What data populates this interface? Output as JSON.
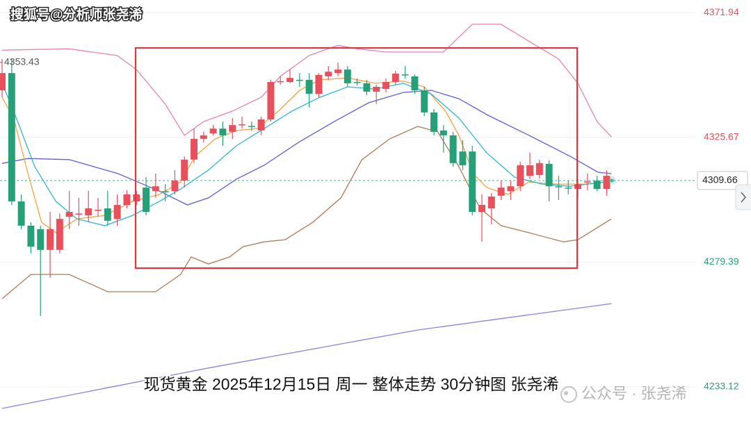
{
  "chart_data": {
    "type": "candlestick",
    "watermark_top": "搜狐号@分析师张尧浠",
    "caption": "现货黄金  2025年12月15日 周一 整体走势 30分钟图 张尧浠",
    "watermark": "公众号 · 张尧浠",
    "xlim": [
      -0.22,
      63.55
    ],
    "ylim": [
      4219.7,
      4376.6
    ],
    "yticks": [
      4233.12,
      4279.39,
      4325.67,
      4371.94
    ],
    "grid": true,
    "last_price": 4309.66,
    "max_label": 4353.43,
    "up_color": "#e8505b",
    "down_color": "#27a07a",
    "ohlc": [
      [
        4343.1,
        4354.7,
        4340.5,
        4349.5
      ],
      [
        4349.5,
        4354.7,
        4300.6,
        4301.9
      ],
      [
        4301.9,
        4304.5,
        4291.6,
        4292.9
      ],
      [
        4292.9,
        4294.2,
        4282.6,
        4285.1
      ],
      [
        4291.6,
        4292.9,
        4259.4,
        4283.9
      ],
      [
        4283.9,
        4298.0,
        4273.6,
        4291.6
      ],
      [
        4283.9,
        4297.4,
        4282.6,
        4295.4
      ],
      [
        4296.2,
        4305.8,
        4291.6,
        4298.0
      ],
      [
        4297.2,
        4303.2,
        4292.9,
        4297.4
      ],
      [
        4296.7,
        4305.8,
        4294.2,
        4299.3
      ],
      [
        4298.6,
        4303.2,
        4296.2,
        4298.8
      ],
      [
        4299.3,
        4305.8,
        4292.9,
        4294.7
      ],
      [
        4295.4,
        4304.5,
        4292.9,
        4300.6
      ],
      [
        4300.6,
        4306.0,
        4299.3,
        4304.5
      ],
      [
        4301.9,
        4305.8,
        4300.6,
        4304.5
      ],
      [
        4307.0,
        4310.9,
        4296.7,
        4298.0
      ],
      [
        4305.7,
        4312.2,
        4303.2,
        4307.5
      ],
      [
        4305.7,
        4308.3,
        4301.9,
        4305.5
      ],
      [
        4305.7,
        4313.5,
        4304.5,
        4309.6
      ],
      [
        4309.6,
        4318.6,
        4307.0,
        4317.4
      ],
      [
        4317.4,
        4328.9,
        4316.1,
        4325.1
      ],
      [
        4325.1,
        4327.7,
        4323.8,
        4326.4
      ],
      [
        4327.1,
        4330.2,
        4326.4,
        4328.9
      ],
      [
        4328.9,
        4331.5,
        4322.5,
        4326.4
      ],
      [
        4327.7,
        4332.8,
        4325.1,
        4330.2
      ],
      [
        4330.2,
        4333.4,
        4328.9,
        4330.5
      ],
      [
        4329.9,
        4331.5,
        4328.0,
        4329.7
      ],
      [
        4328.2,
        4333.4,
        4326.4,
        4332.3
      ],
      [
        4332.3,
        4347.0,
        4331.5,
        4346.2
      ],
      [
        4346.2,
        4348.3,
        4345.2,
        4346.5
      ],
      [
        4346.2,
        4350.8,
        4345.7,
        4347.7
      ],
      [
        4347.0,
        4349.5,
        4344.4,
        4346.9
      ],
      [
        4347.0,
        4349.5,
        4336.7,
        4341.8
      ],
      [
        4341.8,
        4349.5,
        4340.5,
        4348.8
      ],
      [
        4348.3,
        4352.1,
        4347.0,
        4350.0
      ],
      [
        4349.5,
        4353.4,
        4348.3,
        4350.8
      ],
      [
        4350.8,
        4352.1,
        4344.4,
        4345.7
      ],
      [
        4346.2,
        4347.5,
        4344.9,
        4346.0
      ],
      [
        4345.7,
        4347.0,
        4341.3,
        4342.6
      ],
      [
        4342.6,
        4345.2,
        4338.0,
        4344.4
      ],
      [
        4343.6,
        4347.5,
        4342.3,
        4346.2
      ],
      [
        4346.2,
        4350.3,
        4345.2,
        4349.3
      ],
      [
        4349.0,
        4352.1,
        4347.5,
        4348.8
      ],
      [
        4348.3,
        4349.0,
        4341.8,
        4343.1
      ],
      [
        4343.1,
        4344.4,
        4333.6,
        4334.9
      ],
      [
        4334.9,
        4336.2,
        4326.4,
        4327.7
      ],
      [
        4328.2,
        4330.2,
        4320.0,
        4326.4
      ],
      [
        4326.4,
        4327.7,
        4314.8,
        4316.1
      ],
      [
        4320.4,
        4324.6,
        4313.5,
        4315.3
      ],
      [
        4320.4,
        4322.5,
        4296.7,
        4298.0
      ],
      [
        4298.0,
        4304.5,
        4286.9,
        4300.6
      ],
      [
        4299.3,
        4305.0,
        4293.4,
        4303.7
      ],
      [
        4304.0,
        4309.6,
        4302.4,
        4307.0
      ],
      [
        4305.7,
        4309.6,
        4302.4,
        4307.5
      ],
      [
        4307.5,
        4316.6,
        4305.7,
        4315.3
      ],
      [
        4311.4,
        4320.0,
        4310.1,
        4315.3
      ],
      [
        4311.7,
        4317.4,
        4310.4,
        4316.1
      ],
      [
        4315.8,
        4317.1,
        4301.9,
        4307.5
      ],
      [
        4307.5,
        4311.4,
        4302.4,
        4307.2
      ],
      [
        4307.0,
        4309.6,
        4304.5,
        4306.8
      ],
      [
        4306.5,
        4310.1,
        4303.2,
        4308.3
      ],
      [
        4309.1,
        4312.2,
        4306.0,
        4309.3
      ],
      [
        4309.6,
        4311.4,
        4305.7,
        4306.5
      ],
      [
        4306.5,
        4313.5,
        4304.0,
        4311.4
      ]
    ],
    "lines": [
      {
        "color": "#e683b5",
        "x": [
          0,
          7,
          12,
          14,
          17,
          19,
          21,
          24,
          27,
          29,
          32,
          35,
          37,
          40,
          46,
          49,
          52,
          55,
          58,
          60,
          62,
          63.5
        ],
        "values": [
          4358.0,
          4358.5,
          4356.0,
          4350.8,
          4338.0,
          4326.4,
          4331.5,
          4335.4,
          4340.5,
          4348.3,
          4356.0,
          4359.8,
          4358.5,
          4357.3,
          4357.3,
          4367.6,
          4367.6,
          4361.1,
          4354.7,
          4345.7,
          4331.5,
          4325.8
        ]
      },
      {
        "color": "#b07a52",
        "x": [
          0,
          3,
          7,
          11,
          16,
          18.6,
          19.7,
          21.5,
          23.7,
          25.1,
          27.3,
          29.5,
          32.4,
          35.3,
          37.5,
          40.4,
          43.3,
          45.4,
          47.6,
          49.8,
          52,
          54.9,
          58.5,
          60,
          63.5
        ],
        "values": [
          4265.8,
          4274.8,
          4274.8,
          4268.4,
          4268.4,
          4274.8,
          4281.3,
          4278.7,
          4281.3,
          4285.1,
          4286.9,
          4287.7,
          4294.2,
          4303.2,
          4317.4,
          4325.1,
          4329.7,
          4327.7,
          4314.8,
          4299.3,
          4292.9,
          4290.3,
          4286.9,
          4287.7,
          4295.4
        ]
      },
      {
        "color": "#5d5fd4",
        "x": [
          0,
          2.7,
          7,
          12.1,
          16.4,
          19.3,
          21.5,
          24.4,
          27.3,
          30.9,
          34.6,
          38.2,
          41.8,
          44.7,
          47.6,
          50.5,
          54.9,
          59.2,
          62.1,
          63.5
        ],
        "values": [
          4316.0,
          4317.8,
          4317.4,
          4312.2,
          4305.7,
          4300.6,
          4303.2,
          4310.1,
          4315.3,
          4323.8,
          4331.5,
          4338.5,
          4342.3,
          4343.1,
          4340.0,
          4334.1,
          4326.4,
          4318.6,
          4312.7,
          4312.2
        ]
      },
      {
        "color": "#f4a142",
        "x": [
          0,
          1.2,
          2.7,
          4.1,
          5.6,
          7.8,
          10.7,
          13.6,
          16.4,
          18.6,
          20.1,
          22.2,
          24.4,
          26.6,
          28.8,
          31,
          33.1,
          36,
          38.9,
          41.8,
          44,
          46.2,
          47.6,
          49.1,
          50.5,
          52.7,
          54.9,
          57.8,
          60.7,
          62.8
        ],
        "values": [
          4340.5,
          4332.8,
          4312.2,
          4294.2,
          4290.3,
          4295.4,
          4296.7,
          4301.9,
          4304.5,
          4309.1,
          4318.6,
          4325.1,
          4328.2,
          4328.9,
          4335.4,
          4343.1,
          4347.0,
          4347.7,
          4345.7,
          4346.5,
          4344.4,
          4335.4,
          4326.4,
          4312.2,
          4307.0,
          4304.5,
          4309.1,
          4308.3,
          4308.3,
          4309.1
        ]
      },
      {
        "color": "#2db5d4",
        "x": [
          0,
          1.2,
          3.4,
          5.6,
          7.8,
          10.7,
          13.6,
          16.4,
          18.6,
          21.5,
          24.4,
          27.3,
          30.2,
          33.1,
          36,
          38.9,
          41.8,
          44.7,
          47.6,
          50.5,
          53.4,
          56.3,
          59.2,
          62.8
        ],
        "values": [
          4345.7,
          4335.4,
          4314.8,
          4301.9,
          4295.4,
          4292.9,
          4296.7,
          4301.9,
          4306.5,
          4313.5,
          4322.5,
          4328.9,
          4335.4,
          4340.5,
          4344.4,
          4343.6,
          4345.7,
          4341.8,
          4332.8,
          4319.9,
          4310.9,
          4308.3,
          4307.5,
          4309.1
        ]
      },
      {
        "color": "#8a80d8",
        "x": [
          0,
          21.5,
          43.3,
          63.5
        ],
        "values": [
          4225.1,
          4240.1,
          4254.2,
          4264.0
        ]
      }
    ]
  }
}
